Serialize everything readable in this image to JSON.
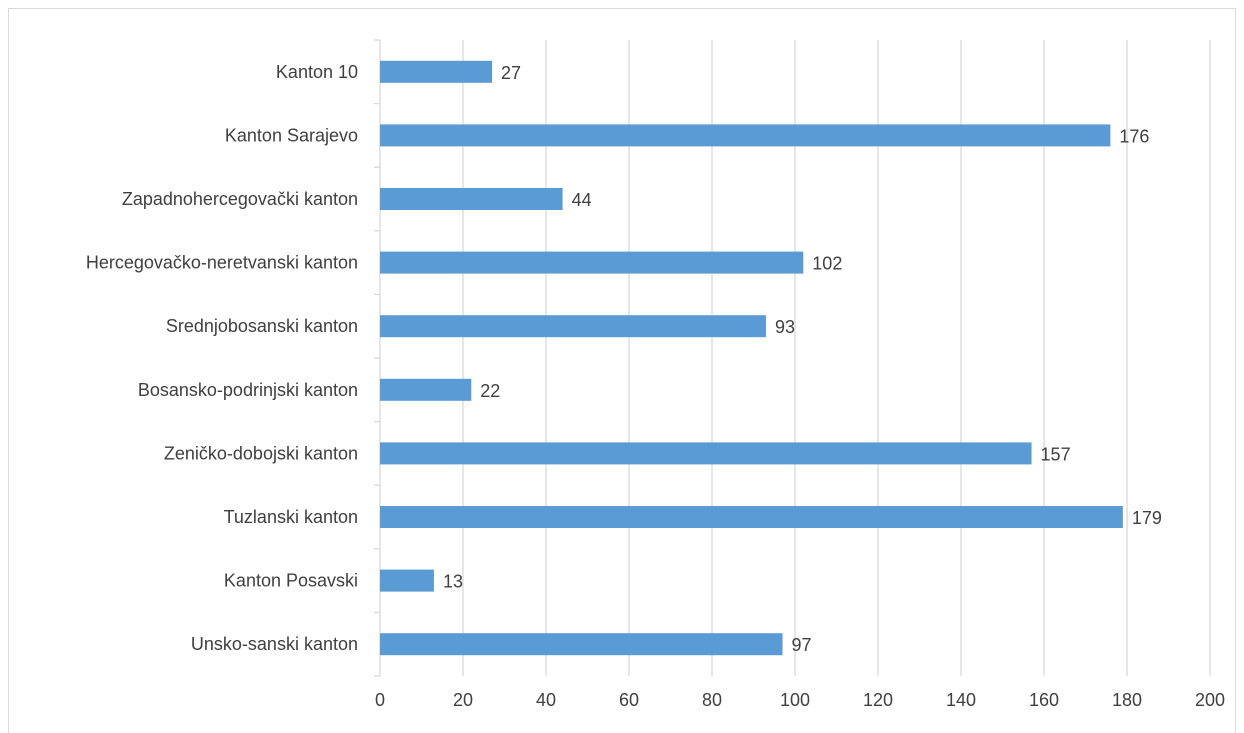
{
  "chart_data": {
    "type": "bar",
    "orientation": "horizontal",
    "categories": [
      "Unsko-sanski kanton",
      "Kanton Posavski",
      "Tuzlanski kanton",
      "Zeničko-dobojski kanton",
      "Bosansko-podrinjski kanton",
      "Srednjobosanski kanton",
      "Hercegovačko-neretvanski kanton",
      "Zapadnohercegovački kanton",
      "Kanton Sarajevo",
      "Kanton 10"
    ],
    "values": [
      97,
      13,
      179,
      157,
      22,
      93,
      102,
      44,
      176,
      27
    ],
    "data_labels": [
      "97",
      "13",
      "179",
      "157",
      "22",
      "93",
      "102",
      "44",
      "176",
      "27"
    ],
    "xlim": [
      0,
      200
    ],
    "x_ticks": [
      0,
      20,
      40,
      60,
      80,
      100,
      120,
      140,
      160,
      180,
      200
    ],
    "x_tick_labels": [
      "0",
      "20",
      "40",
      "60",
      "80",
      "100",
      "120",
      "140",
      "160",
      "180",
      "200"
    ],
    "title": "",
    "xlabel": "",
    "ylabel": "",
    "grid": "vertical",
    "legend": "none",
    "colors": {
      "bar": "#5b9bd5",
      "grid": "#d9d9d9",
      "text": "#404040"
    }
  }
}
